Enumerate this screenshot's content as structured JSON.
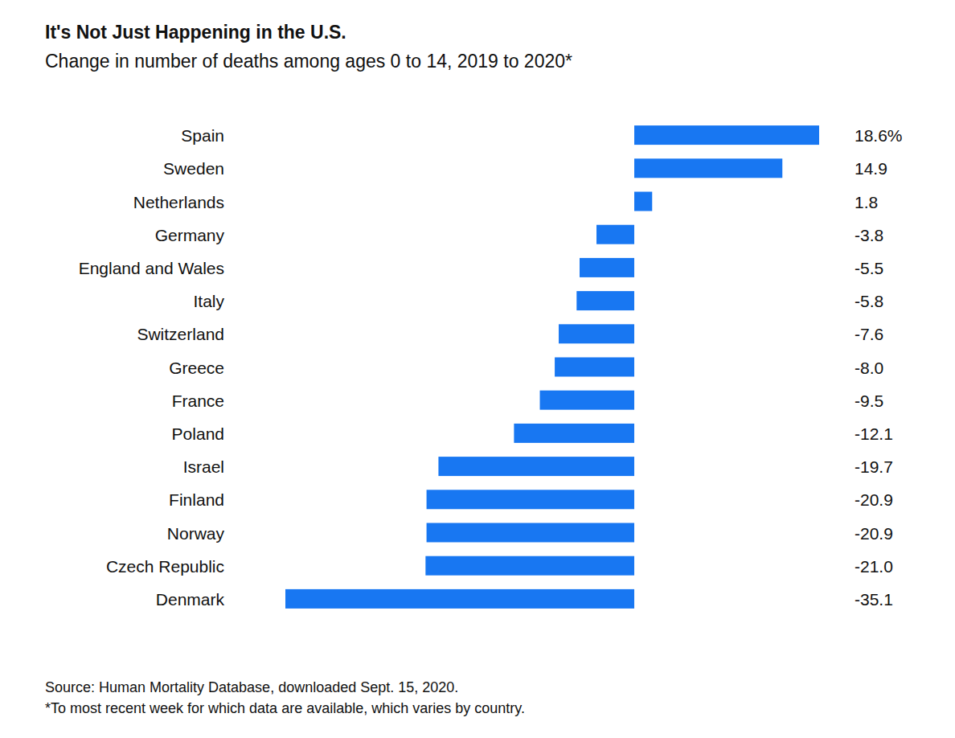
{
  "chart_data": {
    "type": "bar",
    "title": "It's Not Just Happening in the U.S.",
    "subtitle": "Change in number of deaths among ages 0 to 14, 2019 to 2020*",
    "categories": [
      "Spain",
      "Sweden",
      "Netherlands",
      "Germany",
      "England and Wales",
      "Italy",
      "Switzerland",
      "Greece",
      "France",
      "Poland",
      "Israel",
      "Finland",
      "Norway",
      "Czech Republic",
      "Denmark"
    ],
    "values": [
      18.6,
      14.9,
      1.8,
      -3.8,
      -5.5,
      -5.8,
      -7.6,
      -8.0,
      -9.5,
      -12.1,
      -19.7,
      -20.9,
      -20.9,
      -21.0,
      -35.1
    ],
    "value_labels": [
      "18.6%",
      "14.9",
      "1.8",
      "-3.8",
      "-5.5",
      "-5.8",
      "-7.6",
      "-8.0",
      "-9.5",
      "-12.1",
      "-19.7",
      "-20.9",
      "-20.9",
      "-21.0",
      "-35.1"
    ],
    "color": "#1877f2",
    "orientation": "horizontal",
    "xlim": [
      -35.1,
      18.6
    ],
    "data_labels": true,
    "tick_labels": false,
    "grid": false,
    "source": "Source: Human Mortality Database, downloaded Sept. 15, 2020.",
    "footnote": "*To most recent week for which data are available, which varies by country."
  }
}
